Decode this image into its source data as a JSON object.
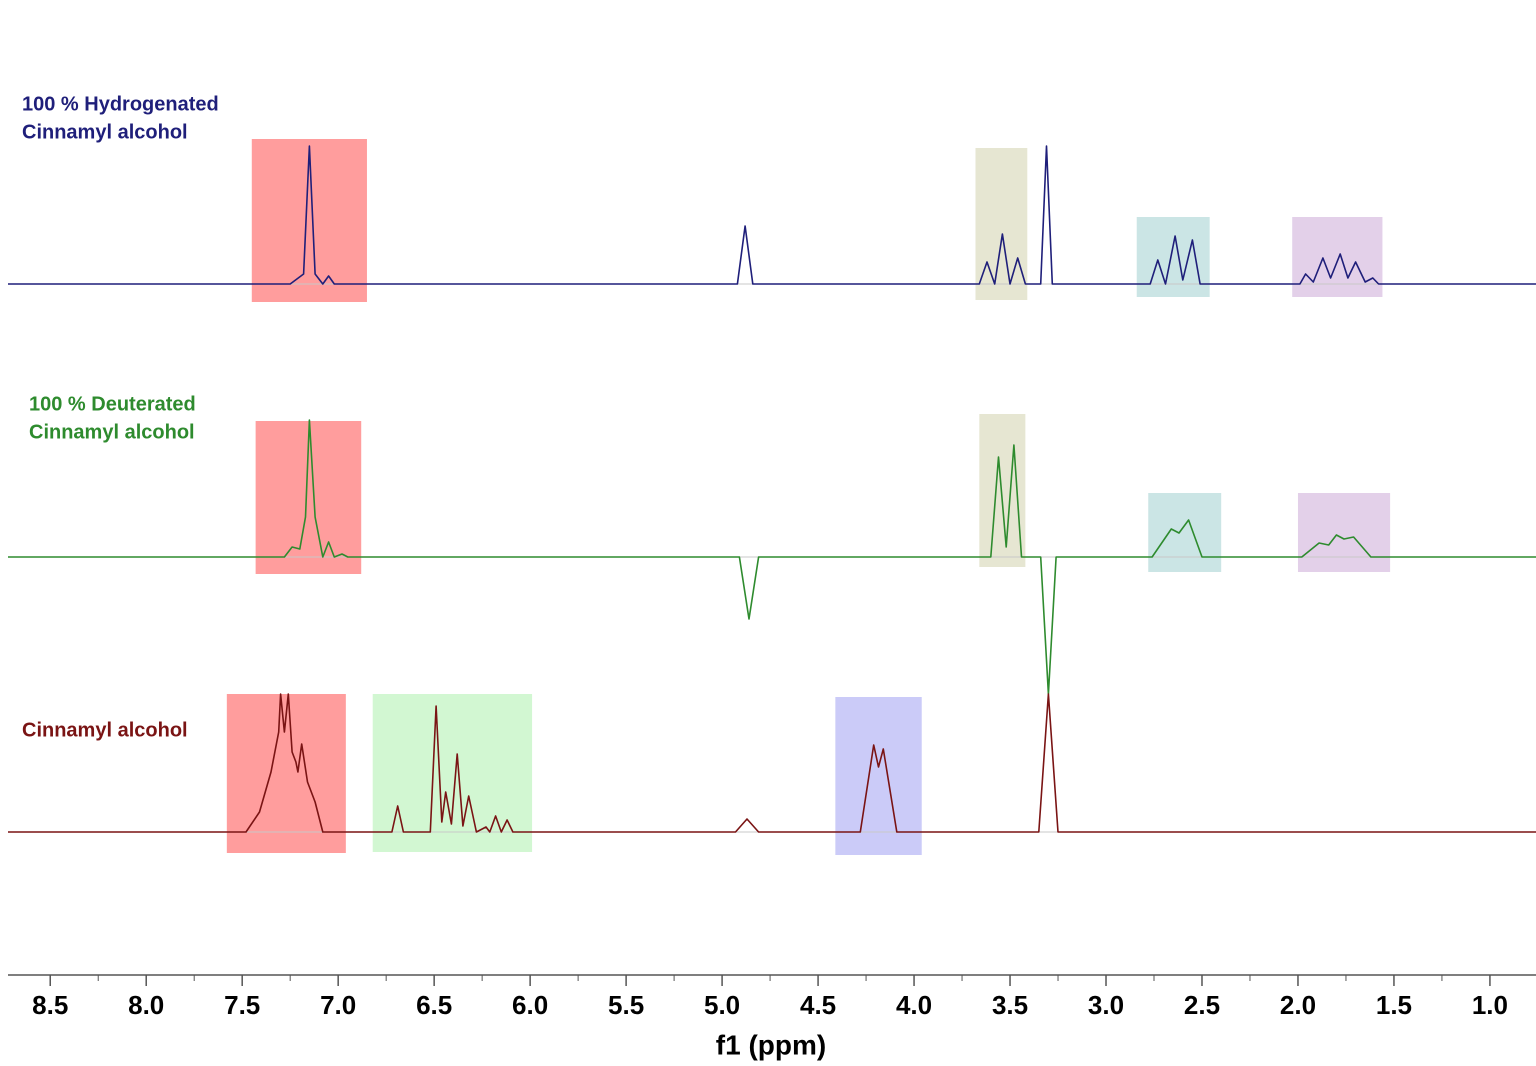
{
  "chart_data": {
    "type": "line",
    "xlabel": "f1 (ppm)",
    "xlim": [
      8.72,
      0.76
    ],
    "xticks": [
      8.5,
      {
        "value": 8,
        "label": "8.0"
      },
      7.5,
      {
        "value": 7,
        "label": "7.0"
      },
      6.5,
      {
        "value": 6,
        "label": "6.0"
      },
      5.5,
      {
        "value": 5,
        "label": "5.0"
      },
      4.5,
      {
        "value": 4,
        "label": "4.0"
      },
      3.5,
      {
        "value": 3,
        "label": "3.0"
      },
      2.5,
      {
        "value": 2,
        "label": "2.0"
      },
      1.5,
      {
        "value": 1,
        "label": "1.0"
      }
    ],
    "minor_ticks": true,
    "series": [
      {
        "label": [
          "100 %  Hydrogenated",
          "Cinnamyl alcohol"
        ],
        "color": "#1f1f7a",
        "x": [
          8.72,
          7.25,
          7.18,
          7.15,
          7.12,
          7.08,
          7.05,
          7.02,
          4.92,
          4.88,
          4.84,
          3.66,
          3.62,
          3.58,
          3.54,
          3.5,
          3.46,
          3.42,
          3.34,
          3.31,
          3.28,
          2.77,
          2.73,
          2.69,
          2.64,
          2.6,
          2.55,
          2.51,
          1.99,
          1.96,
          1.92,
          1.87,
          1.83,
          1.78,
          1.74,
          1.7,
          1.65,
          1.61,
          1.58,
          0.76
        ],
        "values": [
          0,
          0,
          10,
          138,
          10,
          0,
          8,
          0,
          0,
          58,
          0,
          0,
          22,
          0,
          50,
          0,
          26,
          0,
          0,
          138,
          0,
          0,
          24,
          0,
          48,
          4,
          44,
          0,
          0,
          10,
          2,
          26,
          6,
          30,
          6,
          22,
          2,
          6,
          0,
          0
        ],
        "regions": [
          {
            "xlim": [
              7.45,
              6.85
            ],
            "ylim": [
              -18,
              145
            ],
            "color": "#ff5c5c"
          },
          {
            "xlim": [
              3.68,
              3.41
            ],
            "ylim": [
              -16,
              136
            ],
            "color": "#d6d6b4"
          },
          {
            "xlim": [
              2.84,
              2.46
            ],
            "ylim": [
              -13,
              67
            ],
            "color": "#a9d4d4"
          },
          {
            "xlim": [
              2.03,
              1.56
            ],
            "ylim": [
              -13,
              67
            ],
            "color": "#d1b0da"
          }
        ]
      },
      {
        "label": [
          "100 %  Deuterated",
          "Cinnamyl alcohol"
        ],
        "color": "#2e8b2e",
        "x": [
          8.72,
          7.28,
          7.24,
          7.2,
          7.17,
          7.15,
          7.12,
          7.08,
          7.05,
          7.02,
          6.98,
          6.95,
          4.91,
          4.86,
          4.81,
          3.6,
          3.56,
          3.52,
          3.48,
          3.44,
          3.34,
          3.3,
          3.26,
          2.76,
          2.66,
          2.62,
          2.57,
          2.5,
          1.98,
          1.89,
          1.84,
          1.8,
          1.76,
          1.71,
          1.62,
          0.76
        ],
        "values": [
          0,
          0,
          10,
          8,
          40,
          137,
          40,
          0,
          15,
          0,
          3,
          0,
          0,
          -62,
          0,
          0,
          100,
          10,
          112,
          0,
          0,
          -137,
          0,
          0,
          28,
          24,
          37,
          0,
          0,
          14,
          12,
          22,
          18,
          20,
          0,
          0
        ],
        "regions": [
          {
            "xlim": [
              7.43,
              6.88
            ],
            "ylim": [
              -17,
              136
            ],
            "color": "#ff5c5c"
          },
          {
            "xlim": [
              3.66,
              3.42
            ],
            "ylim": [
              -10,
              143
            ],
            "color": "#d6d6b4"
          },
          {
            "xlim": [
              2.78,
              2.4
            ],
            "ylim": [
              -15,
              64
            ],
            "color": "#a9d4d4"
          },
          {
            "xlim": [
              2.0,
              1.52
            ],
            "ylim": [
              -15,
              64
            ],
            "color": "#d1b0da"
          }
        ]
      },
      {
        "label": [
          "Cinnamyl alcohol"
        ],
        "color": "#7a1414",
        "x": [
          8.72,
          7.48,
          7.41,
          7.35,
          7.31,
          7.3,
          7.28,
          7.26,
          7.24,
          7.22,
          7.21,
          7.19,
          7.16,
          7.12,
          7.08,
          6.72,
          6.69,
          6.66,
          6.52,
          6.49,
          6.46,
          6.44,
          6.41,
          6.38,
          6.35,
          6.32,
          6.28,
          6.23,
          6.21,
          6.18,
          6.15,
          6.12,
          6.09,
          4.93,
          4.87,
          4.81,
          4.28,
          4.21,
          4.185,
          4.16,
          4.09,
          3.35,
          3.3,
          3.25,
          0.76
        ],
        "values": [
          0,
          0,
          20,
          60,
          100,
          138,
          100,
          138,
          80,
          70,
          60,
          88,
          50,
          30,
          0,
          0,
          26,
          0,
          0,
          126,
          10,
          40,
          8,
          78,
          6,
          36,
          0,
          5,
          0,
          16,
          0,
          12,
          0,
          0,
          13,
          0,
          0,
          87,
          65,
          83,
          0,
          0,
          138,
          0,
          0
        ],
        "regions": [
          {
            "xlim": [
              7.58,
              6.96
            ],
            "ylim": [
              -21,
              138
            ],
            "color": "#ff5c5c"
          },
          {
            "xlim": [
              6.82,
              5.99
            ],
            "ylim": [
              -20,
              138
            ],
            "color": "#b4f2b4"
          },
          {
            "xlim": [
              4.41,
              3.96
            ],
            "ylim": [
              -23,
              135
            ],
            "color": "#a8a8f4"
          }
        ]
      }
    ]
  }
}
